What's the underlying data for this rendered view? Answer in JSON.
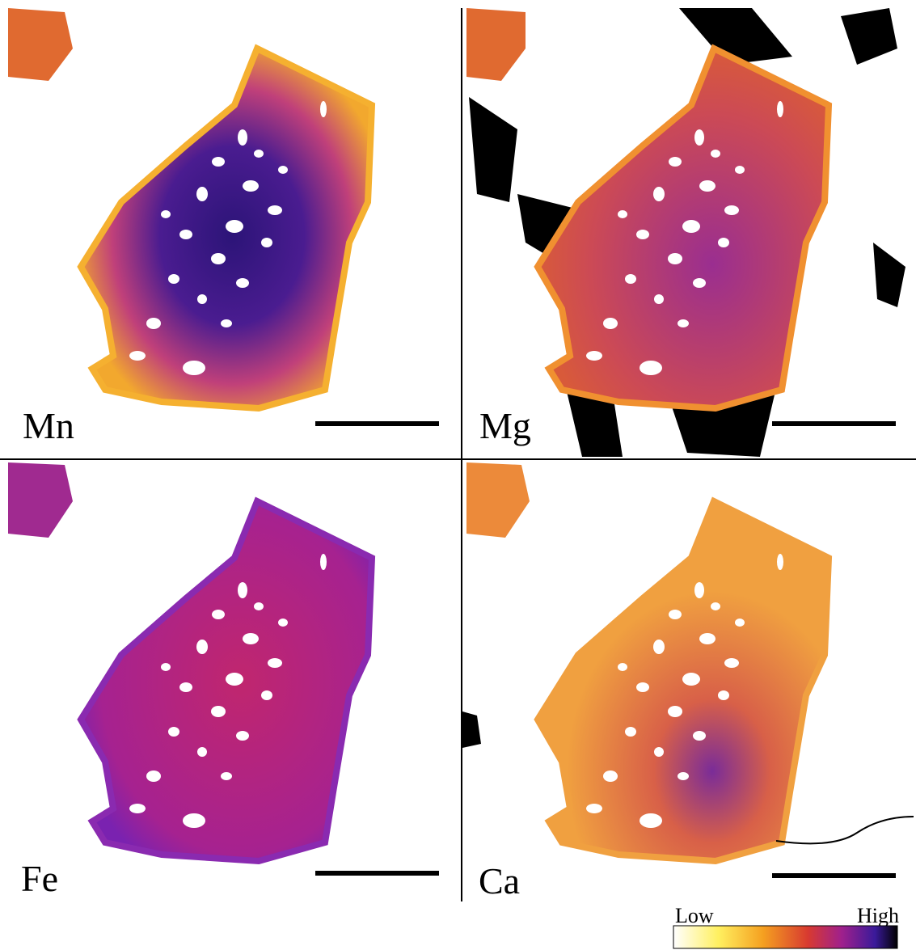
{
  "panels": [
    {
      "label": "Mn"
    },
    {
      "label": "Mg"
    },
    {
      "label": "Fe"
    },
    {
      "label": "Ca"
    }
  ],
  "colorbar": {
    "low": "Low",
    "high": "High"
  }
}
